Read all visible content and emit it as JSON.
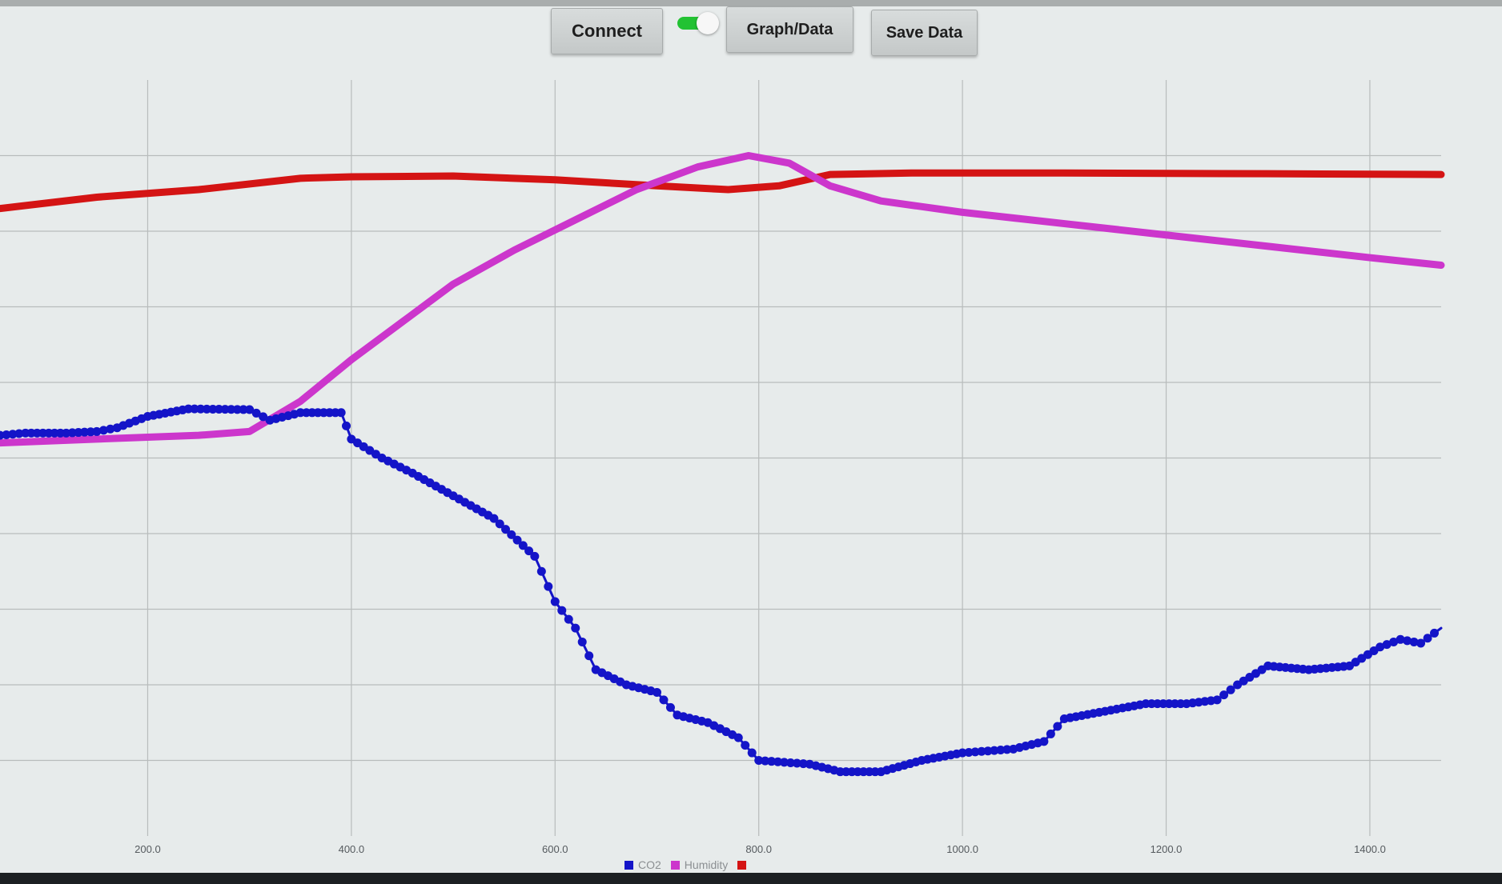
{
  "toolbar": {
    "connect_label": "Connect",
    "graph_data_label": "Graph/Data",
    "save_data_label": "Save Data",
    "toggle_on": true
  },
  "colors": {
    "co2": "#1414c8",
    "humidity": "#cc36cc",
    "third_series": "#d41414",
    "grid": "#b8bcbc",
    "toggle_on": "#22c233"
  },
  "chart_data": {
    "type": "scatter",
    "xlim": [
      55,
      1470
    ],
    "ylim": [
      0,
      10
    ],
    "grid": true,
    "legend_position": "bottom-center",
    "x_ticks": [
      "200.0",
      "400.0",
      "600.0",
      "800.0",
      "1000.0",
      "1200.0",
      "1400.0"
    ],
    "x_tick_values": [
      200,
      400,
      600,
      800,
      1000,
      1200,
      1400
    ],
    "y_grid_values": [
      1,
      2,
      3,
      4,
      5,
      6,
      7,
      8,
      9
    ],
    "series": [
      {
        "name": "CO2",
        "color": "#1414c8",
        "points": [
          [
            55,
            5.3
          ],
          [
            80,
            5.33
          ],
          [
            120,
            5.33
          ],
          [
            150,
            5.35
          ],
          [
            170,
            5.4
          ],
          [
            200,
            5.55
          ],
          [
            240,
            5.65
          ],
          [
            300,
            5.64
          ],
          [
            320,
            5.5
          ],
          [
            350,
            5.6
          ],
          [
            390,
            5.6
          ],
          [
            400,
            5.25
          ],
          [
            430,
            5.0
          ],
          [
            460,
            4.8
          ],
          [
            500,
            4.5
          ],
          [
            540,
            4.2
          ],
          [
            580,
            3.7
          ],
          [
            600,
            3.1
          ],
          [
            620,
            2.75
          ],
          [
            640,
            2.2
          ],
          [
            670,
            2.0
          ],
          [
            700,
            1.9
          ],
          [
            720,
            1.6
          ],
          [
            750,
            1.5
          ],
          [
            780,
            1.3
          ],
          [
            800,
            1.0
          ],
          [
            850,
            0.95
          ],
          [
            880,
            0.85
          ],
          [
            920,
            0.85
          ],
          [
            960,
            1.0
          ],
          [
            1000,
            1.1
          ],
          [
            1050,
            1.15
          ],
          [
            1080,
            1.25
          ],
          [
            1100,
            1.55
          ],
          [
            1140,
            1.65
          ],
          [
            1180,
            1.75
          ],
          [
            1220,
            1.75
          ],
          [
            1250,
            1.8
          ],
          [
            1270,
            2.0
          ],
          [
            1300,
            2.25
          ],
          [
            1340,
            2.2
          ],
          [
            1380,
            2.25
          ],
          [
            1410,
            2.5
          ],
          [
            1430,
            2.6
          ],
          [
            1450,
            2.55
          ],
          [
            1470,
            2.75
          ]
        ]
      },
      {
        "name": "Humidity",
        "color": "#cc36cc",
        "points": [
          [
            55,
            5.2
          ],
          [
            150,
            5.25
          ],
          [
            250,
            5.3
          ],
          [
            300,
            5.35
          ],
          [
            350,
            5.75
          ],
          [
            400,
            6.3
          ],
          [
            450,
            6.8
          ],
          [
            500,
            7.3
          ],
          [
            560,
            7.75
          ],
          [
            620,
            8.15
          ],
          [
            680,
            8.55
          ],
          [
            740,
            8.85
          ],
          [
            790,
            9.0
          ],
          [
            830,
            8.9
          ],
          [
            870,
            8.6
          ],
          [
            920,
            8.4
          ],
          [
            1000,
            8.25
          ],
          [
            1100,
            8.1
          ],
          [
            1200,
            7.95
          ],
          [
            1300,
            7.8
          ],
          [
            1400,
            7.65
          ],
          [
            1470,
            7.55
          ]
        ]
      },
      {
        "name": "",
        "color": "#d41414",
        "points": [
          [
            55,
            8.3
          ],
          [
            150,
            8.45
          ],
          [
            250,
            8.55
          ],
          [
            350,
            8.7
          ],
          [
            400,
            8.72
          ],
          [
            500,
            8.73
          ],
          [
            600,
            8.68
          ],
          [
            700,
            8.6
          ],
          [
            770,
            8.55
          ],
          [
            820,
            8.6
          ],
          [
            870,
            8.75
          ],
          [
            950,
            8.77
          ],
          [
            1100,
            8.77
          ],
          [
            1300,
            8.76
          ],
          [
            1470,
            8.75
          ]
        ]
      }
    ]
  }
}
